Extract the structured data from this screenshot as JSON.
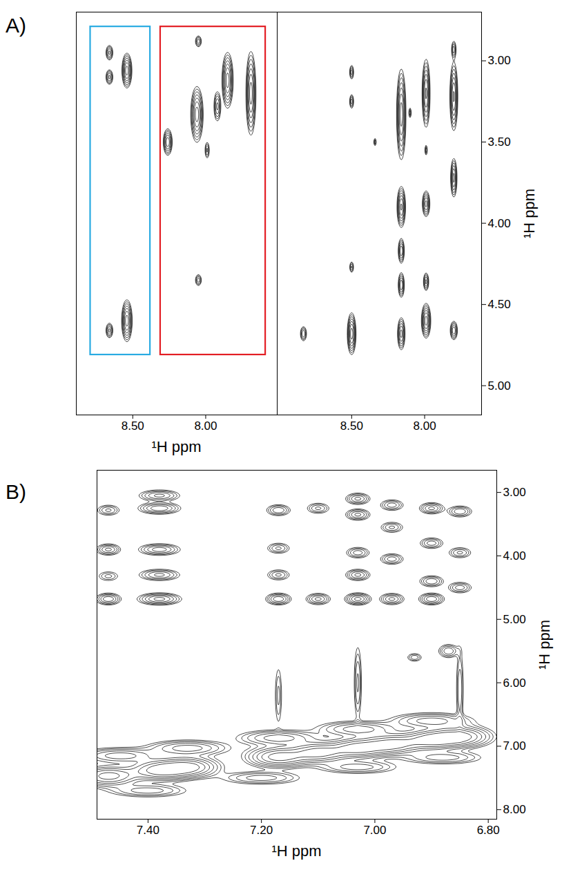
{
  "chart_data": [
    {
      "type": "contour",
      "title": "A)",
      "xlabel": "¹H ppm",
      "xlim": [
        8.887,
        7.51
      ],
      "ylim": [
        2.7,
        5.18
      ],
      "xticks": [
        {
          "value": 8.5,
          "label": "8.50"
        },
        {
          "value": 8.0,
          "label": "8.00"
        }
      ],
      "tick_labels": "x",
      "contour_levels": [
        0.1,
        0.15,
        0.22,
        0.32,
        0.45,
        0.62,
        0.85
      ],
      "peaks": [
        {
          "x": 8.66,
          "y": 2.95,
          "width_x": 0.013,
          "width_y": 0.025,
          "height": 0.5
        },
        {
          "x": 8.66,
          "y": 3.1,
          "width_x": 0.013,
          "width_y": 0.025,
          "height": 0.5
        },
        {
          "x": 8.54,
          "y": 3.06,
          "width_x": 0.016,
          "width_y": 0.05,
          "height": 1
        },
        {
          "x": 8.66,
          "y": 4.66,
          "width_x": 0.013,
          "width_y": 0.025,
          "height": 0.5
        },
        {
          "x": 8.54,
          "y": 4.6,
          "width_x": 0.017,
          "width_y": 0.06,
          "height": 1
        },
        {
          "x": 8.26,
          "y": 3.5,
          "width_x": 0.015,
          "width_y": 0.04,
          "height": 0.8
        },
        {
          "x": 8.05,
          "y": 2.88,
          "width_x": 0.012,
          "width_y": 0.02,
          "height": 0.4
        },
        {
          "x": 8.06,
          "y": 3.33,
          "width_x": 0.02,
          "width_y": 0.08,
          "height": 1
        },
        {
          "x": 7.99,
          "y": 3.55,
          "width_x": 0.009,
          "width_y": 0.03,
          "height": 0.35
        },
        {
          "x": 7.92,
          "y": 3.28,
          "width_x": 0.013,
          "width_y": 0.05,
          "height": 0.5
        },
        {
          "x": 7.85,
          "y": 3.12,
          "width_x": 0.018,
          "width_y": 0.08,
          "height": 1
        },
        {
          "x": 7.69,
          "y": 3.2,
          "width_x": 0.016,
          "width_y": 0.12,
          "height": 1
        },
        {
          "x": 8.05,
          "y": 4.35,
          "width_x": 0.012,
          "width_y": 0.02,
          "height": 0.4
        }
      ],
      "boxes": [
        {
          "x": [
            8.79,
            8.38
          ],
          "y": [
            2.79,
            4.81
          ],
          "color": "#29abe2"
        },
        {
          "x": [
            8.31,
            7.59
          ],
          "y": [
            2.79,
            4.81
          ],
          "color": "#e31e24"
        }
      ]
    },
    {
      "type": "contour",
      "ylabel": "¹H ppm",
      "xlim": [
        9.01,
        7.61
      ],
      "ylim": [
        2.7,
        5.18
      ],
      "xticks": [
        {
          "value": 8.5,
          "label": "8.50"
        },
        {
          "value": 8.0,
          "label": "8.00"
        }
      ],
      "yticks": [
        {
          "value": 3.0,
          "label": "3.00"
        },
        {
          "value": 3.5,
          "label": "3.50"
        },
        {
          "value": 4.0,
          "label": "4.00"
        },
        {
          "value": 4.5,
          "label": "4.50"
        },
        {
          "value": 5.0,
          "label": "5.00"
        }
      ],
      "contour_levels": [
        0.1,
        0.15,
        0.22,
        0.32,
        0.45,
        0.62,
        0.85
      ],
      "peaks": [
        {
          "x": 8.83,
          "y": 4.68,
          "width_x": 0.012,
          "width_y": 0.025,
          "height": 0.45
        },
        {
          "x": 8.5,
          "y": 3.07,
          "width_x": 0.008,
          "width_y": 0.025,
          "height": 0.4
        },
        {
          "x": 8.5,
          "y": 3.25,
          "width_x": 0.008,
          "width_y": 0.025,
          "height": 0.4
        },
        {
          "x": 8.5,
          "y": 4.27,
          "width_x": 0.008,
          "width_y": 0.02,
          "height": 0.35
        },
        {
          "x": 8.5,
          "y": 4.68,
          "width_x": 0.014,
          "width_y": 0.06,
          "height": 1
        },
        {
          "x": 8.34,
          "y": 3.5,
          "width_x": 0.005,
          "width_y": 0.015,
          "height": 0.3
        },
        {
          "x": 8.16,
          "y": 3.33,
          "width_x": 0.015,
          "width_y": 0.13,
          "height": 1
        },
        {
          "x": 8.16,
          "y": 3.9,
          "width_x": 0.014,
          "width_y": 0.06,
          "height": 0.9
        },
        {
          "x": 8.16,
          "y": 4.17,
          "width_x": 0.011,
          "width_y": 0.04,
          "height": 0.6
        },
        {
          "x": 8.16,
          "y": 4.38,
          "width_x": 0.011,
          "width_y": 0.04,
          "height": 0.6
        },
        {
          "x": 8.16,
          "y": 4.68,
          "width_x": 0.013,
          "width_y": 0.05,
          "height": 0.7
        },
        {
          "x": 8.1,
          "y": 3.32,
          "width_x": 0.005,
          "width_y": 0.02,
          "height": 0.3
        },
        {
          "x": 7.99,
          "y": 3.2,
          "width_x": 0.013,
          "width_y": 0.1,
          "height": 0.9
        },
        {
          "x": 7.99,
          "y": 3.55,
          "width_x": 0.005,
          "width_y": 0.02,
          "height": 0.3
        },
        {
          "x": 7.99,
          "y": 3.88,
          "width_x": 0.013,
          "width_y": 0.04,
          "height": 0.7
        },
        {
          "x": 7.99,
          "y": 4.36,
          "width_x": 0.01,
          "width_y": 0.03,
          "height": 0.5
        },
        {
          "x": 7.99,
          "y": 4.6,
          "width_x": 0.015,
          "width_y": 0.05,
          "height": 1
        },
        {
          "x": 7.8,
          "y": 2.93,
          "width_x": 0.009,
          "width_y": 0.03,
          "height": 0.4
        },
        {
          "x": 7.8,
          "y": 3.22,
          "width_x": 0.013,
          "width_y": 0.1,
          "height": 0.9
        },
        {
          "x": 7.8,
          "y": 3.72,
          "width_x": 0.011,
          "width_y": 0.06,
          "height": 0.7
        },
        {
          "x": 7.8,
          "y": 4.66,
          "width_x": 0.013,
          "width_y": 0.03,
          "height": 0.6
        }
      ]
    },
    {
      "type": "contour",
      "title": "B)",
      "xlabel": "¹H ppm",
      "ylabel": "¹H ppm",
      "xlim": [
        7.49,
        6.785
      ],
      "ylim": [
        2.65,
        8.15
      ],
      "xticks": [
        {
          "value": 7.4,
          "label": "7.40"
        },
        {
          "value": 7.2,
          "label": "7.20"
        },
        {
          "value": 7.0,
          "label": "7.00"
        },
        {
          "value": 6.8,
          "label": "6.80"
        }
      ],
      "yticks": [
        {
          "value": 3.0,
          "label": "3.00"
        },
        {
          "value": 4.0,
          "label": "4.00"
        },
        {
          "value": 5.0,
          "label": "5.00"
        },
        {
          "value": 6.0,
          "label": "6.00"
        },
        {
          "value": 7.0,
          "label": "7.00"
        },
        {
          "value": 8.0,
          "label": "8.00"
        }
      ],
      "contour_levels": [
        0.1,
        0.15,
        0.22,
        0.32,
        0.45,
        0.62,
        0.85
      ],
      "peaks": [
        {
          "x": 7.47,
          "y": 7.47,
          "width_x": 0.03,
          "width_y": 0.09,
          "height": 1
        },
        {
          "x": 7.38,
          "y": 7.38,
          "width_x": 0.03,
          "width_y": 0.09,
          "height": 1
        },
        {
          "x": 7.33,
          "y": 7.33,
          "width_x": 0.03,
          "width_y": 0.09,
          "height": 1
        },
        {
          "x": 7.17,
          "y": 7.17,
          "width_x": 0.03,
          "width_y": 0.09,
          "height": 1
        },
        {
          "x": 7.1,
          "y": 7.1,
          "width_x": 0.03,
          "width_y": 0.09,
          "height": 1
        },
        {
          "x": 7.03,
          "y": 7.03,
          "width_x": 0.03,
          "width_y": 0.09,
          "height": 1
        },
        {
          "x": 6.97,
          "y": 6.97,
          "width_x": 0.03,
          "width_y": 0.09,
          "height": 1
        },
        {
          "x": 6.9,
          "y": 6.9,
          "width_x": 0.03,
          "width_y": 0.09,
          "height": 1
        },
        {
          "x": 6.85,
          "y": 6.85,
          "width_x": 0.03,
          "width_y": 0.09,
          "height": 1
        },
        {
          "x": 7.45,
          "y": 7.15,
          "width_x": 0.04,
          "width_y": 0.07,
          "height": 0.55
        },
        {
          "x": 7.33,
          "y": 7.03,
          "width_x": 0.04,
          "width_y": 0.07,
          "height": 0.55
        },
        {
          "x": 7.17,
          "y": 6.87,
          "width_x": 0.04,
          "width_y": 0.07,
          "height": 0.55
        },
        {
          "x": 7.03,
          "y": 6.73,
          "width_x": 0.04,
          "width_y": 0.07,
          "height": 0.55
        },
        {
          "x": 6.9,
          "y": 6.6,
          "width_x": 0.04,
          "width_y": 0.07,
          "height": 0.55
        },
        {
          "x": 7.4,
          "y": 7.7,
          "width_x": 0.04,
          "width_y": 0.06,
          "height": 0.4
        },
        {
          "x": 7.2,
          "y": 7.5,
          "width_x": 0.04,
          "width_y": 0.06,
          "height": 0.4
        },
        {
          "x": 7.03,
          "y": 7.33,
          "width_x": 0.04,
          "width_y": 0.06,
          "height": 0.4
        },
        {
          "x": 6.88,
          "y": 7.18,
          "width_x": 0.04,
          "width_y": 0.06,
          "height": 0.4
        },
        {
          "x": 7.47,
          "y": 3.28,
          "width_x": 0.012,
          "width_y": 0.05,
          "height": 0.35
        },
        {
          "x": 7.47,
          "y": 3.9,
          "width_x": 0.012,
          "width_y": 0.05,
          "height": 0.5
        },
        {
          "x": 7.47,
          "y": 4.32,
          "width_x": 0.012,
          "width_y": 0.05,
          "height": 0.25
        },
        {
          "x": 7.47,
          "y": 4.68,
          "width_x": 0.012,
          "width_y": 0.05,
          "height": 0.6
        },
        {
          "x": 7.38,
          "y": 3.05,
          "width_x": 0.02,
          "width_y": 0.05,
          "height": 0.5
        },
        {
          "x": 7.38,
          "y": 3.25,
          "width_x": 0.02,
          "width_y": 0.05,
          "height": 0.6
        },
        {
          "x": 7.38,
          "y": 3.9,
          "width_x": 0.02,
          "width_y": 0.05,
          "height": 0.55
        },
        {
          "x": 7.38,
          "y": 4.3,
          "width_x": 0.02,
          "width_y": 0.05,
          "height": 0.5
        },
        {
          "x": 7.38,
          "y": 4.68,
          "width_x": 0.02,
          "width_y": 0.05,
          "height": 0.7
        },
        {
          "x": 7.17,
          "y": 3.28,
          "width_x": 0.012,
          "width_y": 0.05,
          "height": 0.45
        },
        {
          "x": 7.17,
          "y": 3.88,
          "width_x": 0.012,
          "width_y": 0.05,
          "height": 0.35
        },
        {
          "x": 7.17,
          "y": 4.3,
          "width_x": 0.012,
          "width_y": 0.05,
          "height": 0.35
        },
        {
          "x": 7.17,
          "y": 4.68,
          "width_x": 0.012,
          "width_y": 0.05,
          "height": 0.6
        },
        {
          "x": 7.1,
          "y": 3.25,
          "width_x": 0.012,
          "width_y": 0.05,
          "height": 0.35
        },
        {
          "x": 7.1,
          "y": 4.68,
          "width_x": 0.012,
          "width_y": 0.05,
          "height": 0.5
        },
        {
          "x": 7.03,
          "y": 3.1,
          "width_x": 0.012,
          "width_y": 0.05,
          "height": 0.5
        },
        {
          "x": 7.03,
          "y": 3.35,
          "width_x": 0.012,
          "width_y": 0.05,
          "height": 0.5
        },
        {
          "x": 7.03,
          "y": 3.95,
          "width_x": 0.012,
          "width_y": 0.05,
          "height": 0.4
        },
        {
          "x": 7.03,
          "y": 4.3,
          "width_x": 0.012,
          "width_y": 0.05,
          "height": 0.5
        },
        {
          "x": 7.03,
          "y": 4.68,
          "width_x": 0.012,
          "width_y": 0.05,
          "height": 0.7
        },
        {
          "x": 6.97,
          "y": 3.2,
          "width_x": 0.012,
          "width_y": 0.05,
          "height": 0.4
        },
        {
          "x": 6.97,
          "y": 3.55,
          "width_x": 0.012,
          "width_y": 0.05,
          "height": 0.35
        },
        {
          "x": 6.97,
          "y": 4.05,
          "width_x": 0.012,
          "width_y": 0.05,
          "height": 0.4
        },
        {
          "x": 6.97,
          "y": 4.68,
          "width_x": 0.012,
          "width_y": 0.05,
          "height": 0.5
        },
        {
          "x": 6.9,
          "y": 3.25,
          "width_x": 0.012,
          "width_y": 0.05,
          "height": 0.5
        },
        {
          "x": 6.9,
          "y": 3.8,
          "width_x": 0.012,
          "width_y": 0.05,
          "height": 0.4
        },
        {
          "x": 6.9,
          "y": 4.4,
          "width_x": 0.012,
          "width_y": 0.05,
          "height": 0.45
        },
        {
          "x": 6.9,
          "y": 4.68,
          "width_x": 0.012,
          "width_y": 0.05,
          "height": 0.6
        },
        {
          "x": 6.85,
          "y": 3.3,
          "width_x": 0.012,
          "width_y": 0.05,
          "height": 0.45
        },
        {
          "x": 6.85,
          "y": 3.95,
          "width_x": 0.012,
          "width_y": 0.05,
          "height": 0.35
        },
        {
          "x": 6.85,
          "y": 4.5,
          "width_x": 0.012,
          "width_y": 0.05,
          "height": 0.4
        },
        {
          "x": 7.03,
          "y": 6.0,
          "width_x": 0.004,
          "width_y": 0.35,
          "height": 0.35
        },
        {
          "x": 6.87,
          "y": 5.5,
          "width_x": 0.01,
          "width_y": 0.06,
          "height": 0.45
        },
        {
          "x": 6.85,
          "y": 6.1,
          "width_x": 0.004,
          "width_y": 0.4,
          "height": 0.3
        },
        {
          "x": 6.93,
          "y": 5.6,
          "width_x": 0.008,
          "width_y": 0.04,
          "height": 0.3
        },
        {
          "x": 7.17,
          "y": 6.2,
          "width_x": 0.004,
          "width_y": 0.3,
          "height": 0.25
        }
      ]
    }
  ]
}
